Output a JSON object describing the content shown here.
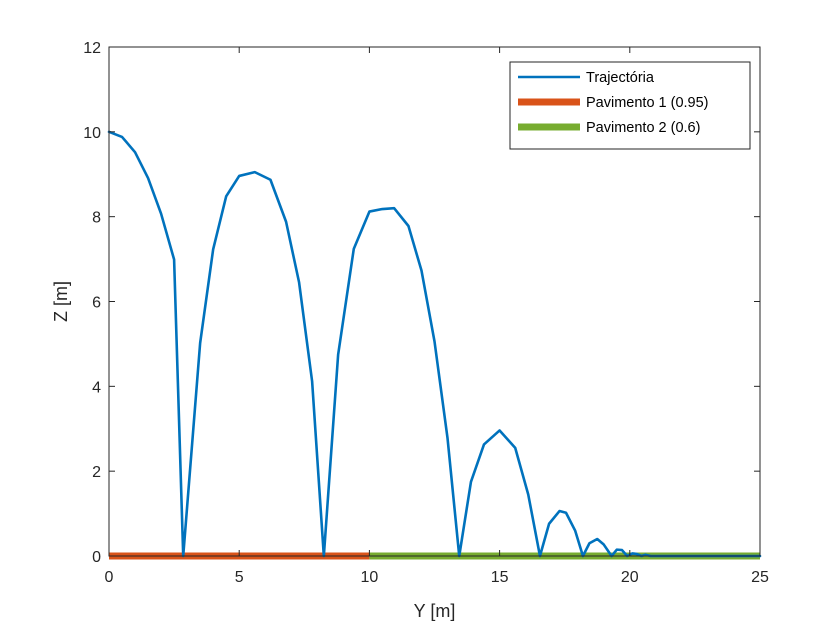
{
  "chart_data": {
    "type": "line",
    "title": "",
    "xlabel": "Y [m]",
    "ylabel": "Z [m]",
    "xlim": [
      0,
      25
    ],
    "ylim": [
      0,
      12
    ],
    "xticks": [
      "0",
      "5",
      "10",
      "15",
      "20",
      "25"
    ],
    "yticks": [
      "0",
      "2",
      "4",
      "6",
      "8",
      "10",
      "12"
    ],
    "grid": false,
    "legend_position": "top-right",
    "series": [
      {
        "name": "Trajectória",
        "color": "#0072BD",
        "kind": "line",
        "x": [
          0,
          0.5,
          1.0,
          1.5,
          2.0,
          2.5,
          2.85,
          3.5,
          4.0,
          4.5,
          5.0,
          5.6,
          6.2,
          6.8,
          7.3,
          7.8,
          8.25,
          8.8,
          9.4,
          10.0,
          10.5,
          10.95,
          11.5,
          12.0,
          12.5,
          13.0,
          13.45,
          13.9,
          14.4,
          15.0,
          15.6,
          16.1,
          16.55,
          16.9,
          17.3,
          17.55,
          17.9,
          18.2,
          18.45,
          18.75,
          19.0,
          19.3,
          19.5,
          19.7,
          19.9,
          20.1,
          20.25,
          20.45,
          20.6,
          20.8,
          21.0,
          25.0
        ],
        "y": [
          10.0,
          9.88,
          9.52,
          8.91,
          8.07,
          6.99,
          0.0,
          5.02,
          7.23,
          8.48,
          8.96,
          9.05,
          8.87,
          7.88,
          6.45,
          4.12,
          0.0,
          4.75,
          7.24,
          8.12,
          8.18,
          8.2,
          7.78,
          6.73,
          5.06,
          2.78,
          0.0,
          1.75,
          2.63,
          2.96,
          2.55,
          1.45,
          0.0,
          0.76,
          1.06,
          1.02,
          0.6,
          0.0,
          0.3,
          0.4,
          0.27,
          0.0,
          0.15,
          0.14,
          0.0,
          0.06,
          0.05,
          0.0,
          0.03,
          0.0,
          0.0,
          0.0
        ]
      },
      {
        "name": "Pavimento 1 (0.95)",
        "color": "#D95319",
        "kind": "band",
        "x": [
          0,
          10
        ],
        "y": [
          0,
          0
        ]
      },
      {
        "name": "Pavimento 2 (0.6)",
        "color": "#77AC30",
        "kind": "band",
        "x": [
          10,
          25
        ],
        "y": [
          0,
          0
        ]
      }
    ]
  }
}
